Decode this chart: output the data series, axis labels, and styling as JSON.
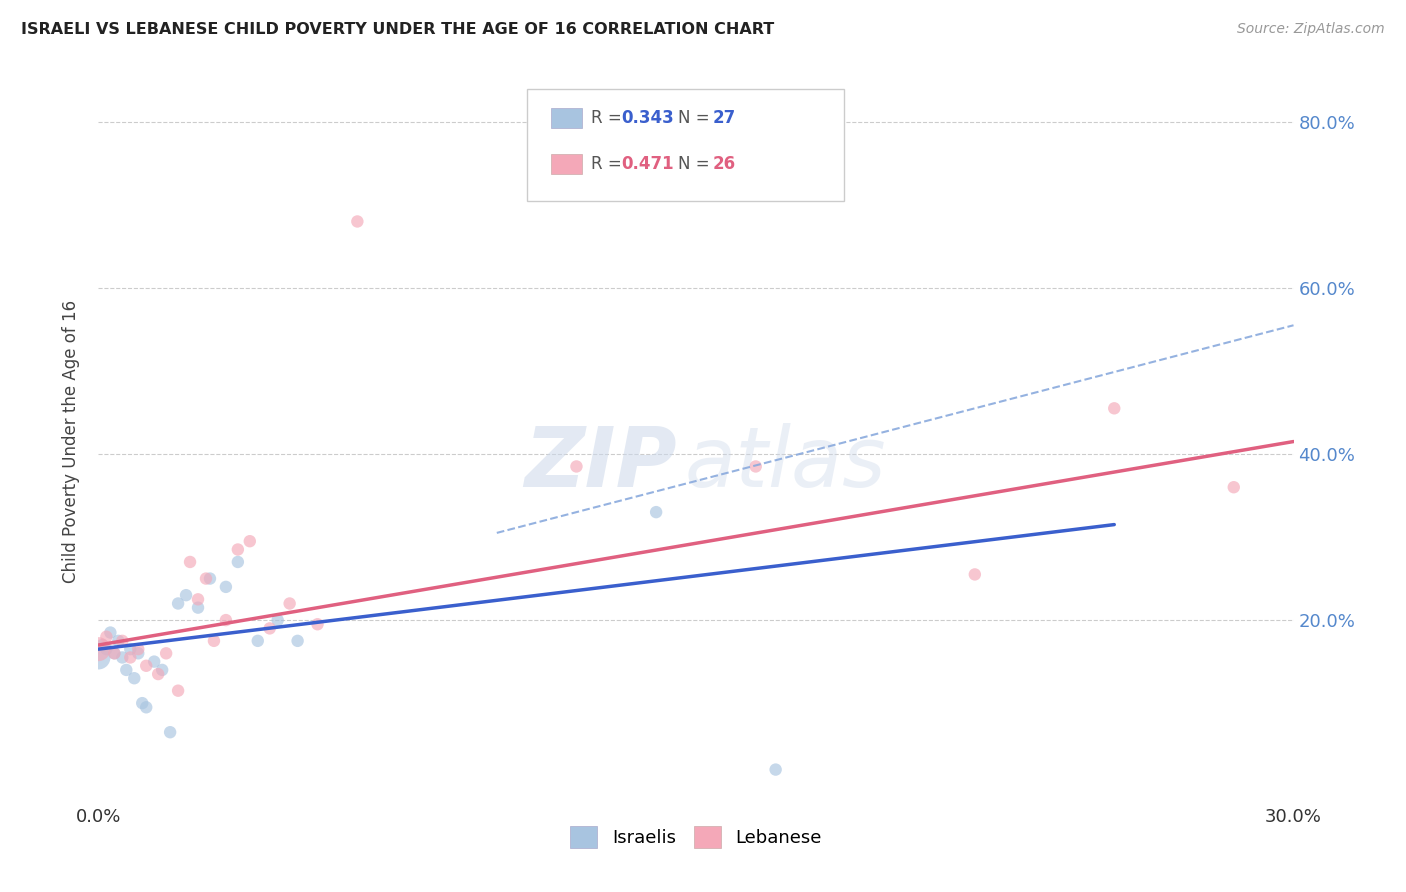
{
  "title": "ISRAELI VS LEBANESE CHILD POVERTY UNDER THE AGE OF 16 CORRELATION CHART",
  "source": "Source: ZipAtlas.com",
  "ylabel": "Child Poverty Under the Age of 16",
  "xlim": [
    0.0,
    0.3
  ],
  "ylim": [
    -0.02,
    0.85
  ],
  "ytick_right_values": [
    0.2,
    0.4,
    0.6,
    0.8
  ],
  "ytick_labels_right": [
    "20.0%",
    "40.0%",
    "60.0%",
    "80.0%"
  ],
  "xtick_vals": [
    0.0,
    0.05,
    0.1,
    0.15,
    0.2,
    0.25,
    0.3
  ],
  "xtick_labels": [
    "0.0%",
    "",
    "",
    "",
    "",
    "",
    "30.0%"
  ],
  "background_color": "#ffffff",
  "grid_color": "#cccccc",
  "israeli_color": "#a8c4e0",
  "lebanese_color": "#f4a8b8",
  "israeli_line_color": "#3a5fcd",
  "lebanese_line_color": "#e06080",
  "dashed_line_color": "#8aaadd",
  "watermark_color": "#ccd8ea",
  "israeli_x": [
    0.0,
    0.001,
    0.002,
    0.003,
    0.004,
    0.005,
    0.006,
    0.007,
    0.008,
    0.009,
    0.01,
    0.011,
    0.012,
    0.014,
    0.016,
    0.018,
    0.02,
    0.022,
    0.025,
    0.028,
    0.032,
    0.035,
    0.04,
    0.045,
    0.05,
    0.14,
    0.17
  ],
  "israeli_y": [
    0.155,
    0.17,
    0.165,
    0.185,
    0.16,
    0.175,
    0.155,
    0.14,
    0.165,
    0.13,
    0.16,
    0.1,
    0.095,
    0.15,
    0.14,
    0.065,
    0.22,
    0.23,
    0.215,
    0.25,
    0.24,
    0.27,
    0.175,
    0.2,
    0.175,
    0.33,
    0.02
  ],
  "israeli_sizes": [
    300,
    80,
    80,
    80,
    80,
    80,
    80,
    80,
    80,
    80,
    80,
    80,
    80,
    80,
    80,
    80,
    80,
    80,
    80,
    80,
    80,
    80,
    80,
    80,
    80,
    80,
    80
  ],
  "lebanese_x": [
    0.0,
    0.002,
    0.004,
    0.006,
    0.008,
    0.01,
    0.012,
    0.015,
    0.017,
    0.02,
    0.023,
    0.025,
    0.027,
    0.029,
    0.032,
    0.035,
    0.038,
    0.043,
    0.048,
    0.055,
    0.065,
    0.12,
    0.165,
    0.22,
    0.255,
    0.285
  ],
  "lebanese_y": [
    0.165,
    0.18,
    0.16,
    0.175,
    0.155,
    0.165,
    0.145,
    0.135,
    0.16,
    0.115,
    0.27,
    0.225,
    0.25,
    0.175,
    0.2,
    0.285,
    0.295,
    0.19,
    0.22,
    0.195,
    0.68,
    0.385,
    0.385,
    0.255,
    0.455,
    0.36
  ],
  "lebanese_sizes": [
    300,
    80,
    80,
    80,
    80,
    80,
    80,
    80,
    80,
    80,
    80,
    80,
    80,
    80,
    80,
    80,
    80,
    80,
    80,
    80,
    80,
    80,
    80,
    80,
    80,
    80
  ],
  "israeli_line_x0": 0.0,
  "israeli_line_y0": 0.165,
  "israeli_line_x1": 0.255,
  "israeli_line_y1": 0.315,
  "lebanese_line_x0": 0.0,
  "lebanese_line_y0": 0.17,
  "lebanese_line_x1": 0.3,
  "lebanese_line_y1": 0.415,
  "dashed_line_x0": 0.1,
  "dashed_line_y0": 0.305,
  "dashed_line_x1": 0.3,
  "dashed_line_y1": 0.555
}
